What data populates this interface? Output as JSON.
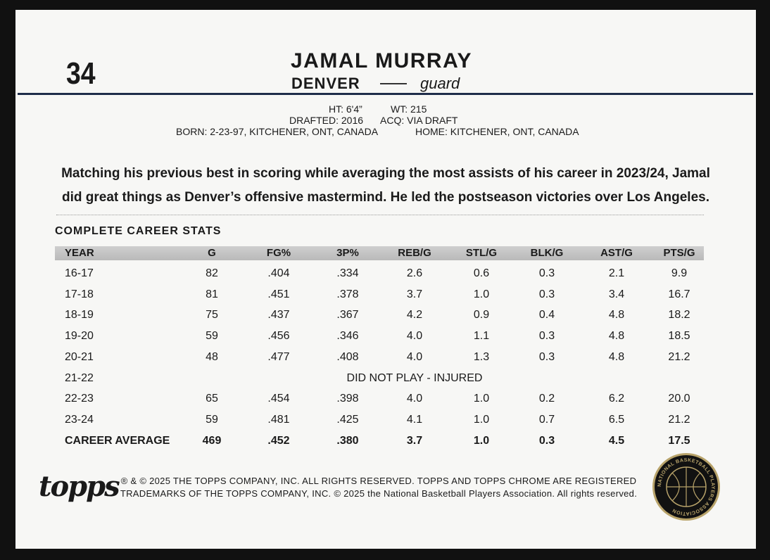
{
  "card": {
    "number": "34",
    "name": "JAMAL MURRAY",
    "team": "DENVER",
    "position": "guard",
    "bio": {
      "height": "HT: 6'4”",
      "weight": "WT: 215",
      "drafted": "DRAFTED: 2016",
      "acquired": "ACQ: VIA DRAFT",
      "born": "BORN: 2-23-97, KITCHENER, ONT, CANADA",
      "home": "HOME: KITCHENER, ONT, CANADA"
    },
    "blurb": [
      "Matching his previous best in scoring while averaging the most assists of his career in 2023/24, Jamal",
      "did great things as Denver’s offensive mastermind. He led the postseason victories over Los Angeles."
    ],
    "stats_title": "COMPLETE CAREER STATS",
    "table": {
      "header": [
        "YEAR",
        "G",
        "FG%",
        "3P%",
        "REB/G",
        "STL/G",
        "BLK/G",
        "AST/G",
        "PTS/G"
      ],
      "rows": [
        [
          "16-17",
          "82",
          ".404",
          ".334",
          "2.6",
          "0.6",
          "0.3",
          "2.1",
          "9.9"
        ],
        [
          "17-18",
          "81",
          ".451",
          ".378",
          "3.7",
          "1.0",
          "0.3",
          "3.4",
          "16.7"
        ],
        [
          "18-19",
          "75",
          ".437",
          ".367",
          "4.2",
          "0.9",
          "0.4",
          "4.8",
          "18.2"
        ],
        [
          "19-20",
          "59",
          ".456",
          ".346",
          "4.0",
          "1.1",
          "0.3",
          "4.8",
          "18.5"
        ],
        [
          "20-21",
          "48",
          ".477",
          ".408",
          "4.0",
          "1.3",
          "0.3",
          "4.8",
          "21.2"
        ],
        [
          "21-22",
          "DID NOT PLAY - INJURED"
        ],
        [
          "22-23",
          "65",
          ".454",
          ".398",
          "4.0",
          "1.0",
          "0.2",
          "6.2",
          "20.0"
        ],
        [
          "23-24",
          "59",
          ".481",
          ".425",
          "4.1",
          "1.0",
          "0.7",
          "6.5",
          "21.2"
        ]
      ],
      "total": [
        "CAREER AVERAGE",
        "469",
        ".452",
        ".380",
        "3.7",
        "1.0",
        "0.3",
        "4.5",
        "17.5"
      ]
    },
    "logo": "topps",
    "copyright": [
      "® & © 2025 THE TOPPS COMPANY, INC. ALL RIGHTS RESERVED. TOPPS AND TOPPS CHROME ARE REGISTERED",
      "TRADEMARKS OF THE TOPPS COMPANY, INC. © 2025 the National Basketball Players Association. All rights reserved."
    ],
    "seal": "NATIONAL BASKETBALL PLAYERS ASSOCIATION"
  }
}
